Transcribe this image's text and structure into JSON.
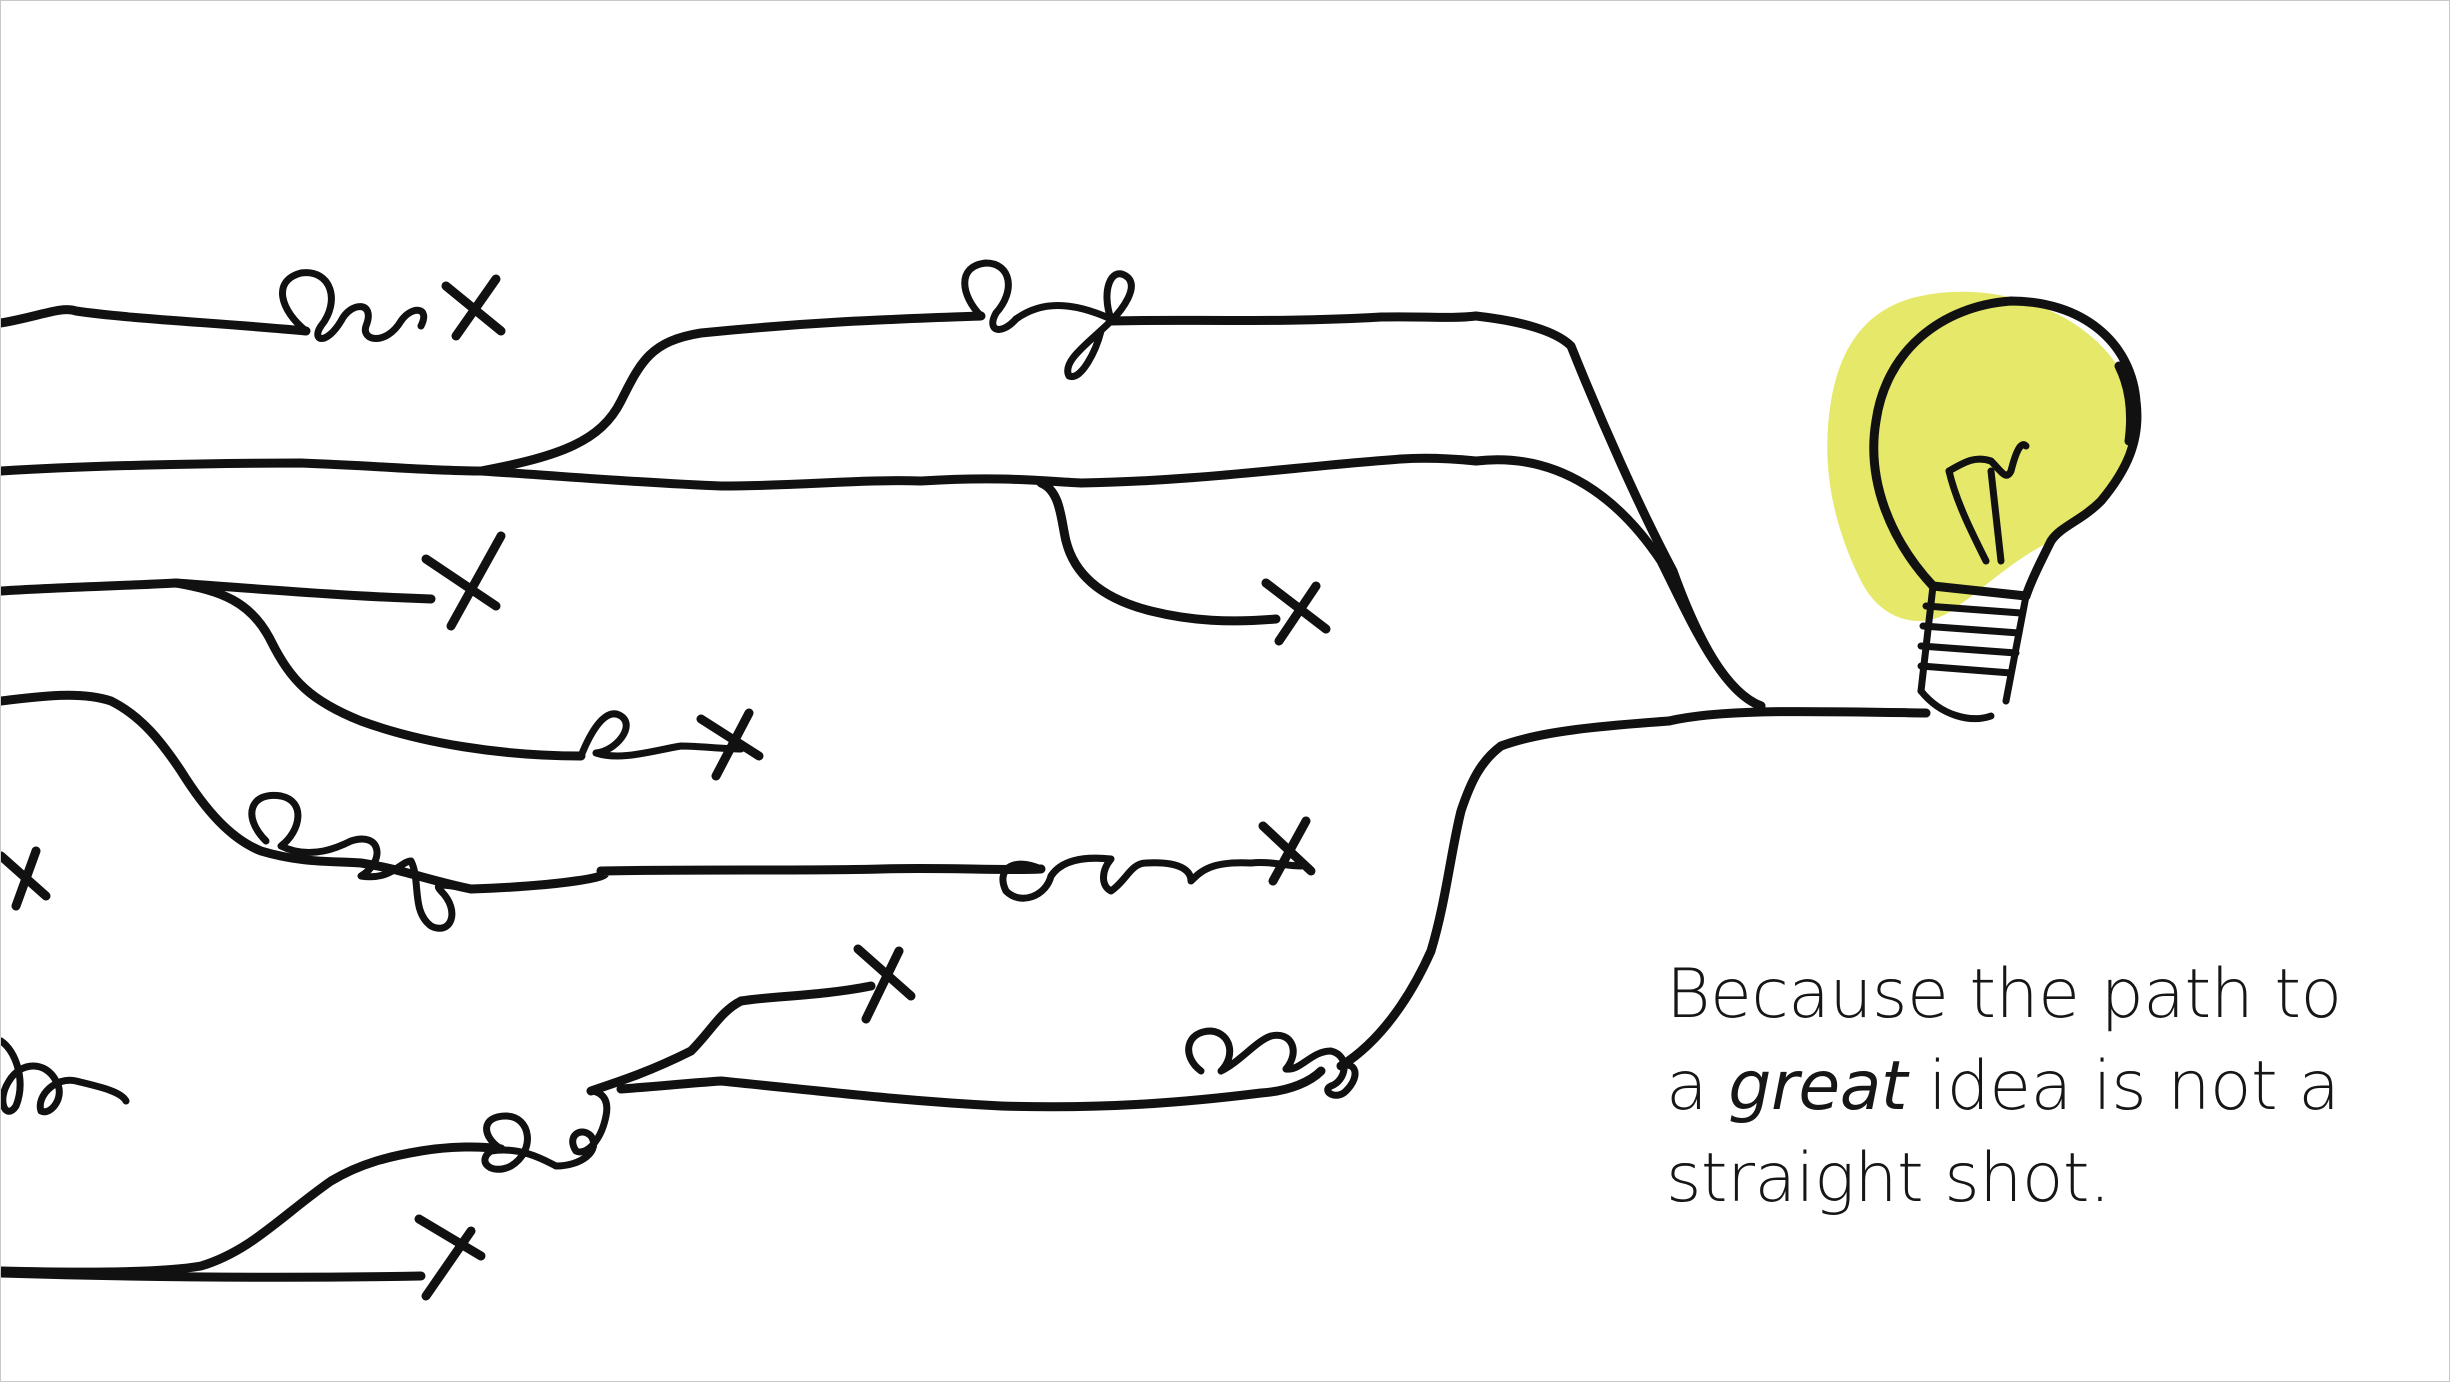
{
  "caption": {
    "line1": "Because the path to",
    "line2_before": "a ",
    "line2_emphasis": "great",
    "line2_after": " idea is not a",
    "line3": "straight shot."
  },
  "colors": {
    "ink": "#111111",
    "bulb_glow": "#e6e86a",
    "text": "#161616",
    "background": "#ffffff"
  },
  "icons": [
    "lightbulb-icon",
    "dead-end-x-icon",
    "loop-scribble-icon"
  ]
}
